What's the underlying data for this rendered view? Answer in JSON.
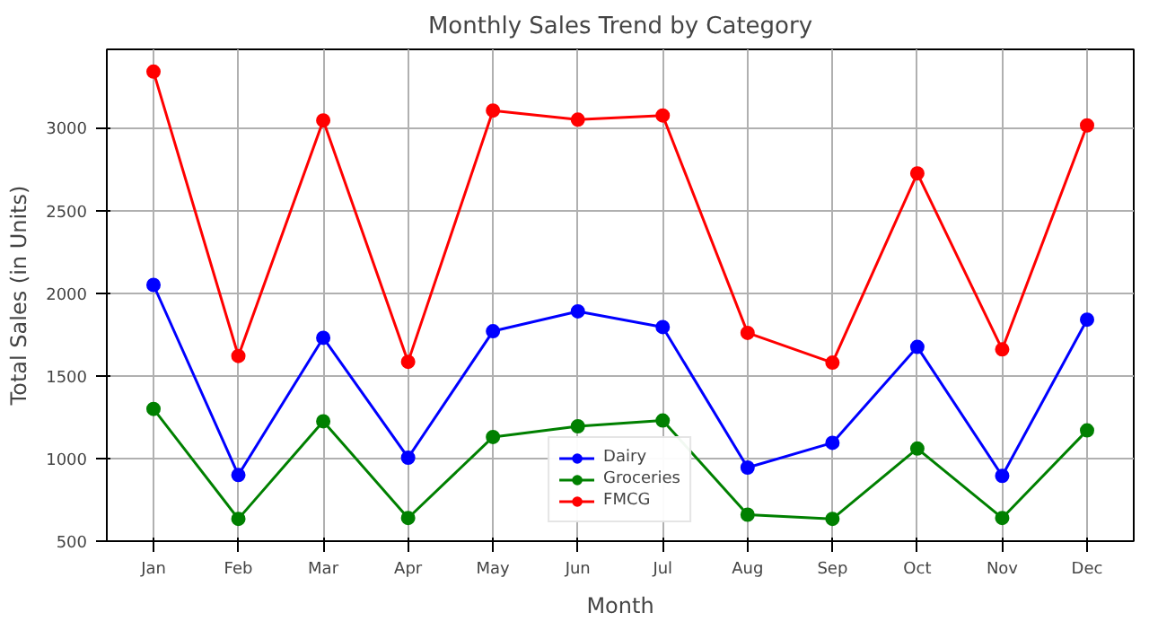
{
  "chart_data": {
    "type": "line",
    "title": "Monthly Sales Trend by Category",
    "xlabel": "Month",
    "ylabel": "Total Sales (in Units)",
    "categories": [
      "Jan",
      "Feb",
      "Mar",
      "Apr",
      "May",
      "Jun",
      "Jul",
      "Aug",
      "Sep",
      "Oct",
      "Nov",
      "Dec"
    ],
    "series": [
      {
        "name": "Dairy",
        "color": "#0000ff",
        "values": [
          2050,
          900,
          1730,
          1005,
          1770,
          1890,
          1795,
          945,
          1095,
          1675,
          895,
          1840
        ]
      },
      {
        "name": "Groceries",
        "color": "#008000",
        "values": [
          1300,
          635,
          1225,
          640,
          1130,
          1195,
          1230,
          660,
          635,
          1060,
          640,
          1170
        ]
      },
      {
        "name": "FMCG",
        "color": "#ff0000",
        "values": [
          3340,
          1620,
          3045,
          1585,
          3105,
          3050,
          3075,
          1760,
          1580,
          2725,
          1660,
          3015
        ]
      }
    ],
    "ylim": [
      500,
      3475
    ],
    "yticks": [
      500,
      1000,
      1500,
      2000,
      2500,
      3000
    ],
    "grid": true,
    "legend": "bottom",
    "marker": "circle",
    "line_style": "solid"
  }
}
